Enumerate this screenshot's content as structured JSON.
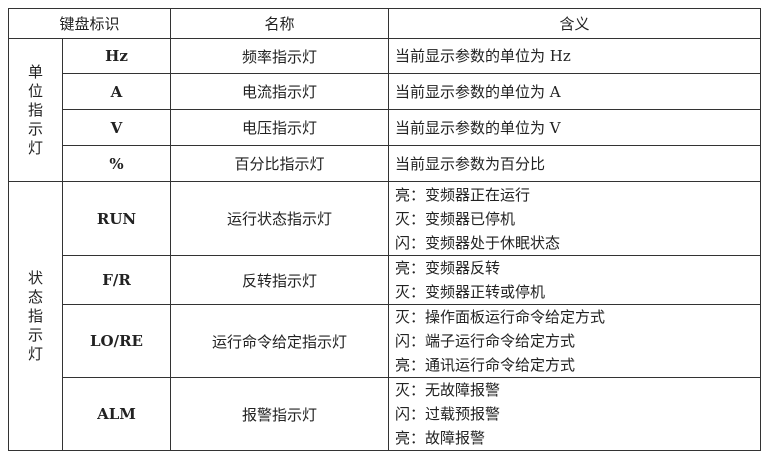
{
  "headers": {
    "key": "键盘标识",
    "name": "名称",
    "meaning": "含义"
  },
  "groups": [
    {
      "label": [
        "单",
        "位",
        "指",
        "示",
        "灯"
      ],
      "rows": [
        {
          "key": "Hz",
          "name": "频率指示灯",
          "meaning": [
            "当前显示参数的单位为 Hz"
          ]
        },
        {
          "key": "A",
          "name": "电流指示灯",
          "meaning": [
            "当前显示参数的单位为 A"
          ]
        },
        {
          "key": "V",
          "name": "电压指示灯",
          "meaning": [
            "当前显示参数的单位为 V"
          ]
        },
        {
          "key": "%",
          "name": "百分比指示灯",
          "meaning": [
            "当前显示参数为百分比"
          ]
        }
      ]
    },
    {
      "label": [
        "状",
        "态",
        "指",
        "示",
        "灯"
      ],
      "rows": [
        {
          "key": "RUN",
          "name": "运行状态指示灯",
          "meaning": [
            "亮：变频器正在运行",
            "灭：变频器已停机",
            "闪：变频器处于休眠状态"
          ]
        },
        {
          "key": "F/R",
          "name": "反转指示灯",
          "meaning": [
            "亮：变频器反转",
            "灭：变频器正转或停机"
          ]
        },
        {
          "key": "LO/RE",
          "name": "运行命令给定指示灯",
          "meaning": [
            "灭：操作面板运行命令给定方式",
            "闪：端子运行命令给定方式",
            "亮：通讯运行命令给定方式"
          ]
        },
        {
          "key": "ALM",
          "name": "报警指示灯",
          "meaning": [
            "灭：无故障报警",
            "闪：过载预报警",
            "亮：故障报警"
          ]
        }
      ]
    }
  ]
}
